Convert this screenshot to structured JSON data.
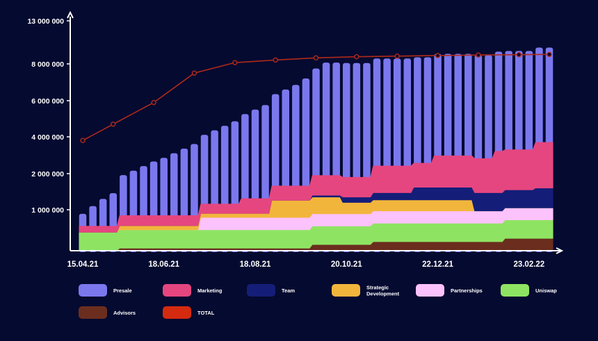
{
  "chart_data": {
    "type": "area",
    "title": "",
    "xlabel": "",
    "ylabel": "",
    "y_ticks": [
      "1 000 000",
      "2 000 000",
      "4 000 000",
      "6 000 000",
      "8 000 000",
      "13 000 000"
    ],
    "y_tick_values": [
      1000000,
      2000000,
      4000000,
      6000000,
      8000000,
      13000000
    ],
    "x_ticks": [
      "15.04.21",
      "18.06.21",
      "18.08.21",
      "20.10.21",
      "22.12.21",
      "23.02.22"
    ],
    "x_tick_index": [
      0,
      8,
      17,
      26,
      35,
      44
    ],
    "periods": 47,
    "layer_order": [
      "Advisors",
      "Uniswap",
      "Partnerships",
      "Strategic Development",
      "Team",
      "Marketing",
      "Presale"
    ],
    "series": [
      {
        "name": "Presale",
        "color": "#7b78ee",
        "values": [
          300000,
          500000,
          700000,
          860000,
          1100000,
          1300000,
          1550000,
          1800000,
          2000000,
          2250000,
          2500000,
          2750000,
          2950000,
          3200000,
          3450000,
          3700000,
          3950000,
          4200000,
          4450000,
          4700000,
          4950000,
          5200000,
          5550000,
          5800000,
          6200000,
          6200000,
          6200000,
          6200000,
          6200000,
          6200000,
          6200000,
          6200000,
          6200000,
          6200000,
          6200000,
          6200000,
          6200000,
          6200000,
          6200000,
          6200000,
          6200000,
          6200000,
          6200000,
          6200000,
          6200000,
          6200000,
          6200000
        ]
      },
      {
        "name": "Marketing",
        "color": "#e5467f",
        "values": [
          150000,
          150000,
          150000,
          150000,
          250000,
          250000,
          250000,
          250000,
          250000,
          250000,
          250000,
          250000,
          250000,
          250000,
          250000,
          250000,
          400000,
          400000,
          400000,
          400000,
          400000,
          400000,
          400000,
          550000,
          550000,
          550000,
          550000,
          550000,
          550000,
          950000,
          950000,
          950000,
          950000,
          950000,
          950000,
          1350000,
          1350000,
          1350000,
          1350000,
          1350000,
          1350000,
          1750000,
          1750000,
          1750000,
          1750000,
          2100000,
          2100000
        ]
      },
      {
        "name": "Team",
        "color": "#141e78",
        "values": [
          0,
          0,
          0,
          0,
          0,
          0,
          0,
          0,
          0,
          0,
          0,
          0,
          0,
          0,
          0,
          0,
          0,
          0,
          0,
          0,
          0,
          0,
          0,
          50000,
          50000,
          50000,
          150000,
          150000,
          150000,
          200000,
          200000,
          200000,
          200000,
          350000,
          350000,
          350000,
          350000,
          350000,
          350000,
          500000,
          500000,
          500000,
          500000,
          500000,
          500000,
          550000,
          550000
        ]
      },
      {
        "name": "Strategic Development",
        "color": "#f2b53c",
        "values": [
          0,
          0,
          0,
          0,
          100000,
          100000,
          100000,
          100000,
          100000,
          100000,
          100000,
          100000,
          100000,
          100000,
          100000,
          100000,
          100000,
          100000,
          100000,
          450000,
          450000,
          450000,
          450000,
          450000,
          450000,
          450000,
          300000,
          300000,
          300000,
          300000,
          300000,
          300000,
          300000,
          300000,
          300000,
          300000,
          300000,
          300000,
          300000,
          0,
          0,
          0,
          0,
          0,
          0,
          0,
          0
        ]
      },
      {
        "name": "Partnerships",
        "color": "#fcc2fb",
        "values": [
          0,
          0,
          0,
          0,
          0,
          0,
          0,
          0,
          0,
          0,
          0,
          0,
          300000,
          300000,
          300000,
          300000,
          300000,
          300000,
          300000,
          300000,
          300000,
          300000,
          300000,
          300000,
          300000,
          300000,
          300000,
          300000,
          300000,
          300000,
          300000,
          300000,
          300000,
          300000,
          300000,
          300000,
          300000,
          300000,
          300000,
          300000,
          300000,
          300000,
          300000,
          300000,
          300000,
          300000,
          300000
        ]
      },
      {
        "name": "Uniswap",
        "color": "#8ee462",
        "values": [
          450000,
          450000,
          450000,
          450000,
          450000,
          450000,
          450000,
          450000,
          450000,
          450000,
          450000,
          450000,
          450000,
          450000,
          450000,
          450000,
          450000,
          450000,
          450000,
          450000,
          450000,
          450000,
          450000,
          450000,
          450000,
          450000,
          450000,
          450000,
          450000,
          450000,
          450000,
          450000,
          450000,
          450000,
          450000,
          450000,
          450000,
          450000,
          450000,
          450000,
          450000,
          450000,
          450000,
          450000,
          450000,
          450000,
          450000
        ]
      },
      {
        "name": "Advisors",
        "color": "#6b2e1e",
        "values": [
          0,
          0,
          0,
          0,
          60000,
          60000,
          60000,
          60000,
          60000,
          60000,
          60000,
          60000,
          60000,
          60000,
          60000,
          60000,
          60000,
          60000,
          60000,
          60000,
          60000,
          60000,
          60000,
          150000,
          150000,
          150000,
          150000,
          150000,
          150000,
          220000,
          220000,
          220000,
          220000,
          220000,
          220000,
          220000,
          220000,
          220000,
          220000,
          220000,
          220000,
          220000,
          300000,
          300000,
          300000,
          300000,
          300000
        ]
      }
    ],
    "total": {
      "name": "TOTAL",
      "color": "#d42a10",
      "line_color": "#b02a1a",
      "values": [
        3800000,
        null,
        null,
        4700000,
        null,
        null,
        null,
        5900000,
        null,
        null,
        null,
        7500000,
        null,
        null,
        null,
        8150000,
        null,
        null,
        null,
        8450000,
        null,
        null,
        null,
        8700000,
        null,
        null,
        null,
        8830000,
        null,
        null,
        null,
        8900000,
        null,
        null,
        null,
        8970000,
        null,
        null,
        null,
        9030000,
        null,
        null,
        null,
        9070000,
        null,
        null,
        9100000
      ]
    },
    "legend": [
      {
        "label": "Presale",
        "color": "#7b78ee"
      },
      {
        "label": "Marketing",
        "color": "#e5467f"
      },
      {
        "label": "Team",
        "color": "#141e78"
      },
      {
        "label": [
          "Strategic",
          "Development"
        ],
        "color": "#f2b53c"
      },
      {
        "label": "Partnerships",
        "color": "#fcc2fb"
      },
      {
        "label": "Uniswap",
        "color": "#8ee462"
      },
      {
        "label": "Advisors",
        "color": "#6b2e1e"
      },
      {
        "label": "TOTAL",
        "color": "#d42a10"
      }
    ],
    "legend_position": "bottom",
    "grid": false
  }
}
